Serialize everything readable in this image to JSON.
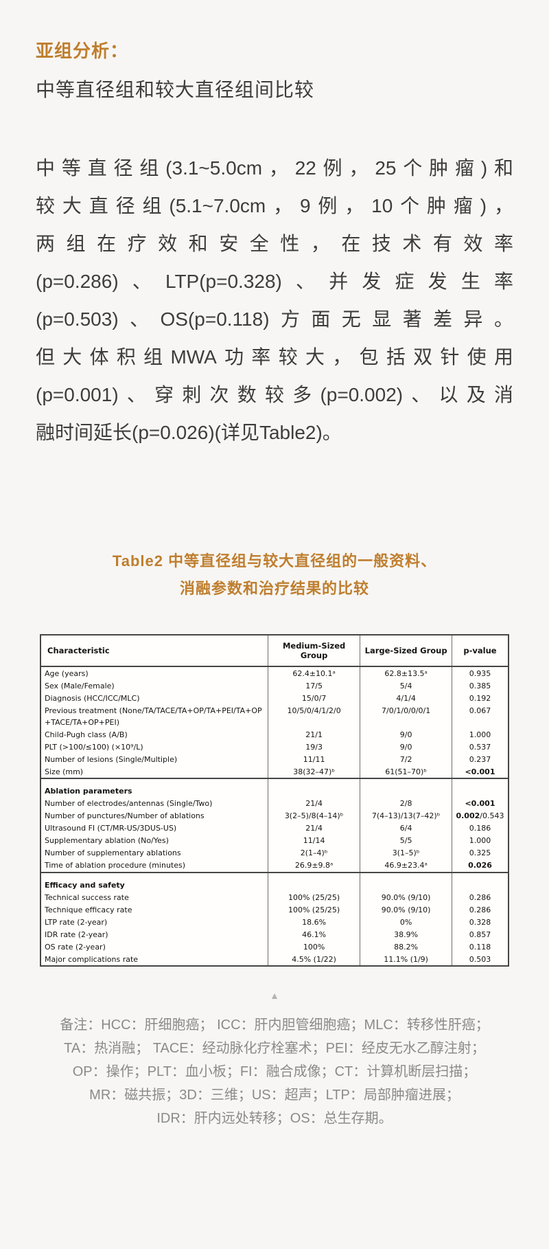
{
  "colors": {
    "accent_orange": "#bf7e2e",
    "body_text": "#3d3d3d",
    "note_gray": "#8a8a8a",
    "page_background": "#f7f6f4",
    "table_border": "#454545"
  },
  "heading": {
    "title": "亚组分析：",
    "subtitle": "中等直径组和较大直径组间比较"
  },
  "paragraph": {
    "lines": [
      "中等直径组(3.1~5.0cm，22例，25个肿瘤)和",
      "较大直径组(5.1~7.0cm，9例，10个肿瘤)，",
      "两组在疗效和安全性，在技术有效率",
      "(p=0.286)、LTP(p=0.328)、并发症发生率",
      "(p=0.503)、OS(p=0.118)方面无显著差异。",
      "但大体积组MWA功率较大，包括双针使用",
      "(p=0.001)、穿刺次数较多(p=0.002)、以及消",
      "融时间延长(p=0.026)(详见Table2)。"
    ]
  },
  "table_title": {
    "line1": "Table2 中等直径组与较大直径组的一般资料、",
    "line2": "消融参数和治疗结果的比较"
  },
  "table": {
    "columns": [
      "Characteristic",
      "Medium-Sized Group",
      "Large-Sized Group",
      "p-value"
    ],
    "rows": [
      {
        "label": "Age (years)",
        "medium": "62.4±10.1ᵃ",
        "large": "62.8±13.5ᵃ",
        "p": [
          {
            "t": "0.935"
          }
        ]
      },
      {
        "label": "Sex (Male/Female)",
        "medium": "17/5",
        "large": "5/4",
        "p": [
          {
            "t": "0.385"
          }
        ]
      },
      {
        "label": "Diagnosis (HCC/ICC/MLC)",
        "medium": "15/0/7",
        "large": "4/1/4",
        "p": [
          {
            "t": "0.192"
          }
        ]
      },
      {
        "label": "Previous treatment (None/TA/TACE/TA+OP/TA+PEI/TA+OP +TACE/TA+OP+PEI)",
        "medium": "10/5/0/4/1/2/0",
        "large": "7/0/1/0/0/0/1",
        "p": [
          {
            "t": "0.067"
          }
        ]
      },
      {
        "label": "Child-Pugh class (A/B)",
        "medium": "21/1",
        "large": "9/0",
        "p": [
          {
            "t": "1.000"
          }
        ]
      },
      {
        "label": "PLT (>100/≤100) (×10⁹/L)",
        "medium": "19/3",
        "large": "9/0",
        "p": [
          {
            "t": "0.537"
          }
        ]
      },
      {
        "label": "Number of lesions (Single/Multiple)",
        "medium": "11/11",
        "large": "7/2",
        "p": [
          {
            "t": "0.237"
          }
        ]
      },
      {
        "label": "Size (mm)",
        "medium": "38(32–47)ᵇ",
        "large": "61(51–70)ᵇ",
        "p": [
          {
            "t": "<0.001",
            "b": true
          }
        ]
      },
      {
        "section": "Ablation parameters"
      },
      {
        "label": "Number of electrodes/antennas (Single/Two)",
        "medium": "21/4",
        "large": "2/8",
        "p": [
          {
            "t": "<0.001",
            "b": true
          }
        ]
      },
      {
        "label": "Number of punctures/Number of ablations",
        "medium": "3(2–5)/8(4–14)ᵇ",
        "large": "7(4–13)/13(7–42)ᵇ",
        "p": [
          {
            "t": "0.002",
            "b": true
          },
          {
            "t": "/0.543"
          }
        ]
      },
      {
        "label": "Ultrasound FI (CT/MR-US/3DUS-US)",
        "medium": "21/4",
        "large": "6/4",
        "p": [
          {
            "t": "0.186"
          }
        ]
      },
      {
        "label": "Supplementary ablation (No/Yes)",
        "medium": "11/14",
        "large": "5/5",
        "p": [
          {
            "t": "1.000"
          }
        ]
      },
      {
        "label": "Number of supplementary ablations",
        "medium": "2(1–4)ᵇ",
        "large": "3(1–5)ᵇ",
        "p": [
          {
            "t": "0.325"
          }
        ]
      },
      {
        "label": "Time of ablation procedure (minutes)",
        "medium": "26.9±9.8ᵃ",
        "large": "46.9±23.4ᵃ",
        "p": [
          {
            "t": "0.026",
            "b": true
          }
        ]
      },
      {
        "section": "Efficacy and safety"
      },
      {
        "label": "Technical success rate",
        "medium": "100% (25/25)",
        "large": "90.0% (9/10)",
        "p": [
          {
            "t": "0.286"
          }
        ]
      },
      {
        "label": "Technique efficacy rate",
        "medium": "100% (25/25)",
        "large": "90.0% (9/10)",
        "p": [
          {
            "t": "0.286"
          }
        ]
      },
      {
        "label": "LTP rate (2-year)",
        "medium": "18.6%",
        "large": "0%",
        "p": [
          {
            "t": "0.328"
          }
        ]
      },
      {
        "label": "IDR rate (2-year)",
        "medium": "46.1%",
        "large": "38.9%",
        "p": [
          {
            "t": "0.857"
          }
        ]
      },
      {
        "label": "OS rate (2-year)",
        "medium": "100%",
        "large": "88.2%",
        "p": [
          {
            "t": "0.118"
          }
        ]
      },
      {
        "label": "Major complications rate",
        "medium": "4.5% (1/22)",
        "large": "11.1% (1/9)",
        "p": [
          {
            "t": "0.503"
          }
        ]
      }
    ]
  },
  "icons": {
    "divider_triangle": "▲"
  },
  "notes": {
    "lines": [
      "备注：HCC：肝细胞癌； ICC：肝内胆管细胞癌；MLC：转移性肝癌；",
      "TA：热消融； TACE：经动脉化疗栓塞术；PEI：经皮无水乙醇注射；",
      "OP：操作；PLT：血小板；FI：融合成像；CT：计算机断层扫描；",
      "MR：磁共振；3D：三维；US：超声；LTP：局部肿瘤进展；",
      "IDR：肝内远处转移；OS：总生存期。"
    ]
  }
}
